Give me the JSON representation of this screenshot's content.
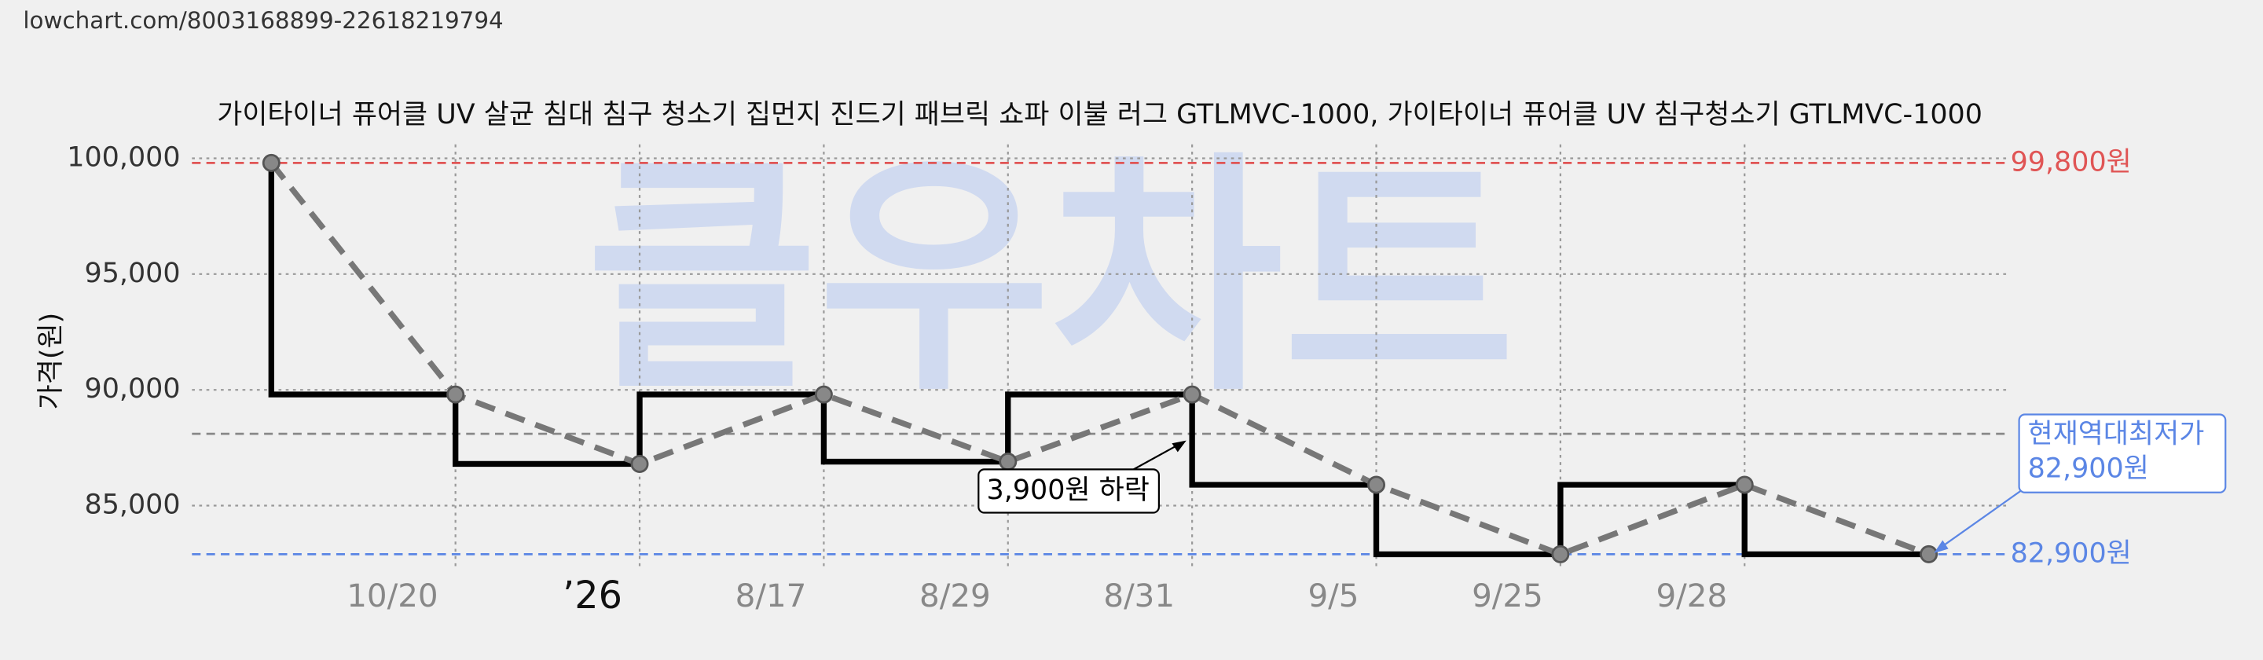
{
  "url": "lowchart.com/8003168899-22618219794",
  "chart_data": {
    "type": "line",
    "title": "가이타이너 퓨어클 UV 살균 침대 침구 청소기 집먼지 진드기 패브릭 쇼파 이불 러그 GTLMVC-1000, 가이타이너 퓨어클 UV 침구청소기 GTLMVC-1000",
    "y_label": "가격(원)",
    "watermark": "클우차트",
    "categories": [
      null,
      "10/20",
      "’26",
      "8/17",
      "8/29",
      "8/31",
      "9/5",
      "9/25",
      "9/28",
      null
    ],
    "series": [
      {
        "color": "#000000",
        "step": true,
        "values": [
          99800,
          89800,
          86800,
          89800,
          86900,
          89800,
          85900,
          82900,
          85900,
          82900
        ]
      },
      {
        "color": "#777777",
        "dashed": true,
        "values": [
          99800,
          89800,
          86800,
          89800,
          86900,
          89800,
          85900,
          82900,
          85900,
          82900
        ]
      }
    ],
    "ylim": [
      82200,
      100600
    ],
    "yticks": [
      {
        "value": 85000,
        "label": "85,000"
      },
      {
        "value": 90000,
        "label": "90,000"
      },
      {
        "value": 95000,
        "label": "95,000"
      },
      {
        "value": 100000,
        "label": "100,000"
      }
    ],
    "grid": true,
    "reference_lines": [
      {
        "value": 99800,
        "label": "99,800원",
        "color": "#e05555"
      },
      {
        "value": 82900,
        "label": "82,900원",
        "color": "#5b86e5"
      },
      {
        "value": 88100,
        "color": "#888888"
      }
    ],
    "annotations": [
      {
        "text": "3,900원 하락"
      },
      {
        "lines": [
          "현재역대최저가",
          "82,900원"
        ]
      }
    ]
  }
}
